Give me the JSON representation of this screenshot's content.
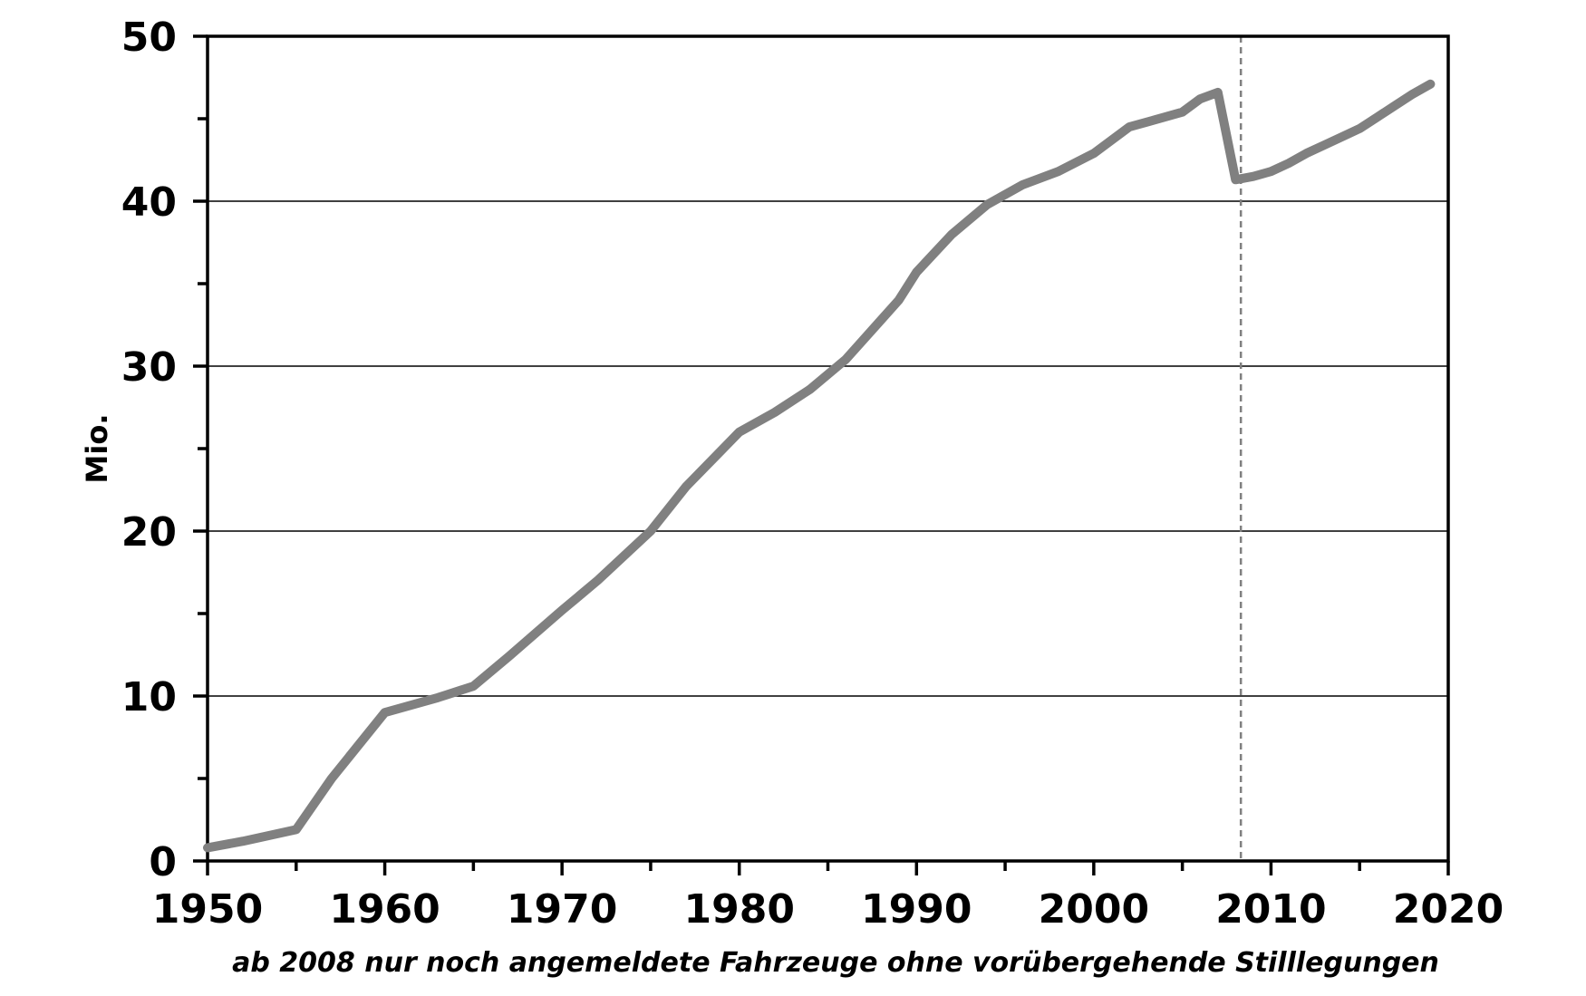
{
  "chart_data": {
    "type": "line",
    "title": "",
    "xlabel": "",
    "ylabel": "Mio.",
    "footnote": "ab 2008  nur noch angemeldete Fahrzeuge ohne vorübergehende Stilllegungen",
    "xlim": [
      1950,
      2020
    ],
    "ylim": [
      0,
      50
    ],
    "x_ticks": [
      1950,
      1960,
      1970,
      1980,
      1990,
      2000,
      2010,
      2020
    ],
    "y_ticks": [
      0,
      10,
      20,
      30,
      40,
      50
    ],
    "x_tick_labels": [
      "1950",
      "1960",
      "1970",
      "1980",
      "1990",
      "2000",
      "2010",
      "2020"
    ],
    "y_tick_labels": [
      "0",
      "10",
      "20",
      "30",
      "40",
      "50"
    ],
    "grid": "horizontal",
    "marker_line_x": 2008.3,
    "colors": {
      "series": "#808080",
      "grid": "#000000",
      "marker_line": "#808080"
    },
    "series": [
      {
        "x": [
          1950,
          1952,
          1955,
          1957,
          1960,
          1963,
          1965,
          1967,
          1970,
          1972,
          1975,
          1977,
          1980,
          1982,
          1984,
          1986,
          1988,
          1989,
          1990,
          1992,
          1994,
          1996,
          1998,
          2000,
          2002,
          2004,
          2005,
          2006,
          2007,
          2008,
          2009,
          2010,
          2011,
          2012,
          2013,
          2014,
          2015,
          2016,
          2017,
          2018,
          2019
        ],
        "y": [
          0.8,
          1.2,
          1.9,
          5.0,
          9.0,
          9.9,
          10.6,
          12.4,
          15.2,
          17.0,
          20.0,
          22.7,
          26.0,
          27.2,
          28.6,
          30.4,
          32.8,
          34.0,
          35.7,
          38.0,
          39.8,
          41.0,
          41.8,
          42.9,
          44.5,
          45.1,
          45.4,
          46.2,
          46.6,
          41.3,
          41.5,
          41.8,
          42.3,
          42.9,
          43.4,
          43.9,
          44.4,
          45.1,
          45.8,
          46.5,
          47.1
        ]
      }
    ]
  }
}
